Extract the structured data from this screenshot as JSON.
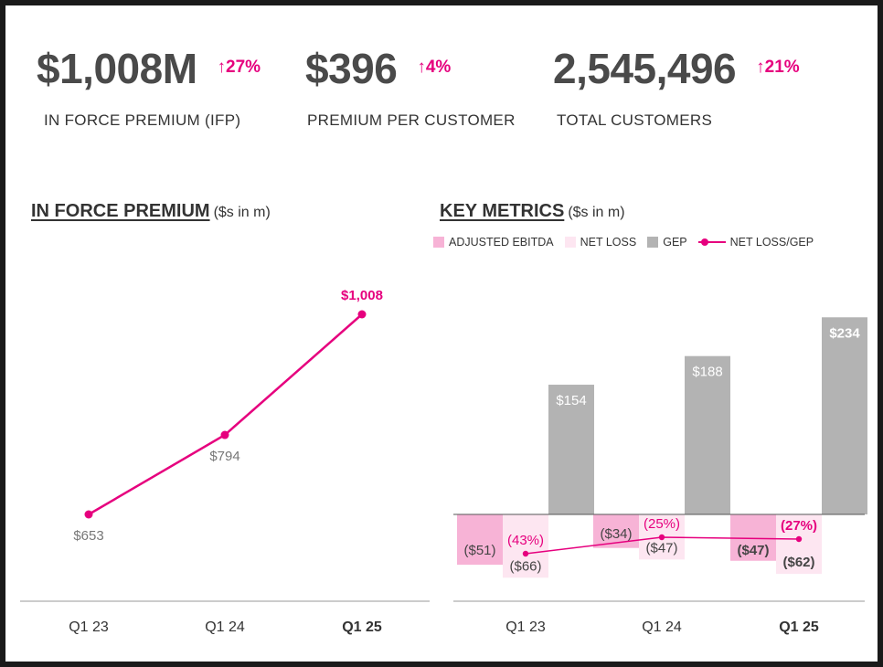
{
  "kpis": [
    {
      "value": "$1,008M",
      "change": "↑27%",
      "label": "IN FORCE PREMIUM (IFP)"
    },
    {
      "value": "$396",
      "change": "↑4%",
      "label": "PREMIUM PER CUSTOMER"
    },
    {
      "value": "2,545,496",
      "change": "↑21%",
      "label": "TOTAL CUSTOMERS"
    }
  ],
  "left_chart": {
    "title": "IN FORCE PREMIUM",
    "unit": "($s in m)"
  },
  "right_chart": {
    "title": "KEY METRICS",
    "unit": "($s in m)"
  },
  "legend": [
    {
      "label": "ADJUSTED EBITDA",
      "color": "#f7b3d6"
    },
    {
      "label": "NET LOSS",
      "color": "#fde6f1"
    },
    {
      "label": "GEP",
      "color": "#b3b3b3"
    },
    {
      "label": "NET LOSS/GEP",
      "color": "#e6007e"
    }
  ],
  "colors": {
    "accent": "#e6007e",
    "gep": "#b3b3b3",
    "ebitda": "#f7b3d6",
    "netloss": "#fde6f1",
    "text": "#4a4a4a"
  },
  "chart_data": [
    {
      "type": "line",
      "title": "IN FORCE PREMIUM",
      "ylabel": "($s in m)",
      "categories": [
        "Q1 23",
        "Q1 24",
        "Q1 25"
      ],
      "values": [
        653,
        794,
        1008
      ],
      "data_labels": [
        "$653",
        "$794",
        "$1,008"
      ]
    },
    {
      "type": "bar",
      "title": "KEY METRICS",
      "ylabel": "($s in m)",
      "categories": [
        "Q1 23",
        "Q1 24",
        "Q1 25"
      ],
      "series": [
        {
          "name": "ADJUSTED EBITDA",
          "values": [
            -51,
            -34,
            -47
          ],
          "labels": [
            "($51)",
            "($34)",
            "($47)"
          ]
        },
        {
          "name": "NET LOSS",
          "values": [
            -66,
            -47,
            -62
          ],
          "labels": [
            "($66)",
            "($47)",
            "($62)"
          ]
        },
        {
          "name": "GEP",
          "values": [
            154,
            188,
            234
          ],
          "labels": [
            "$154",
            "$188",
            "$234"
          ]
        },
        {
          "name": "NET LOSS/GEP",
          "values": [
            -43,
            -25,
            -27
          ],
          "labels": [
            "(43%)",
            "(25%)",
            "(27%)"
          ],
          "type": "line",
          "unit": "%"
        }
      ]
    }
  ]
}
